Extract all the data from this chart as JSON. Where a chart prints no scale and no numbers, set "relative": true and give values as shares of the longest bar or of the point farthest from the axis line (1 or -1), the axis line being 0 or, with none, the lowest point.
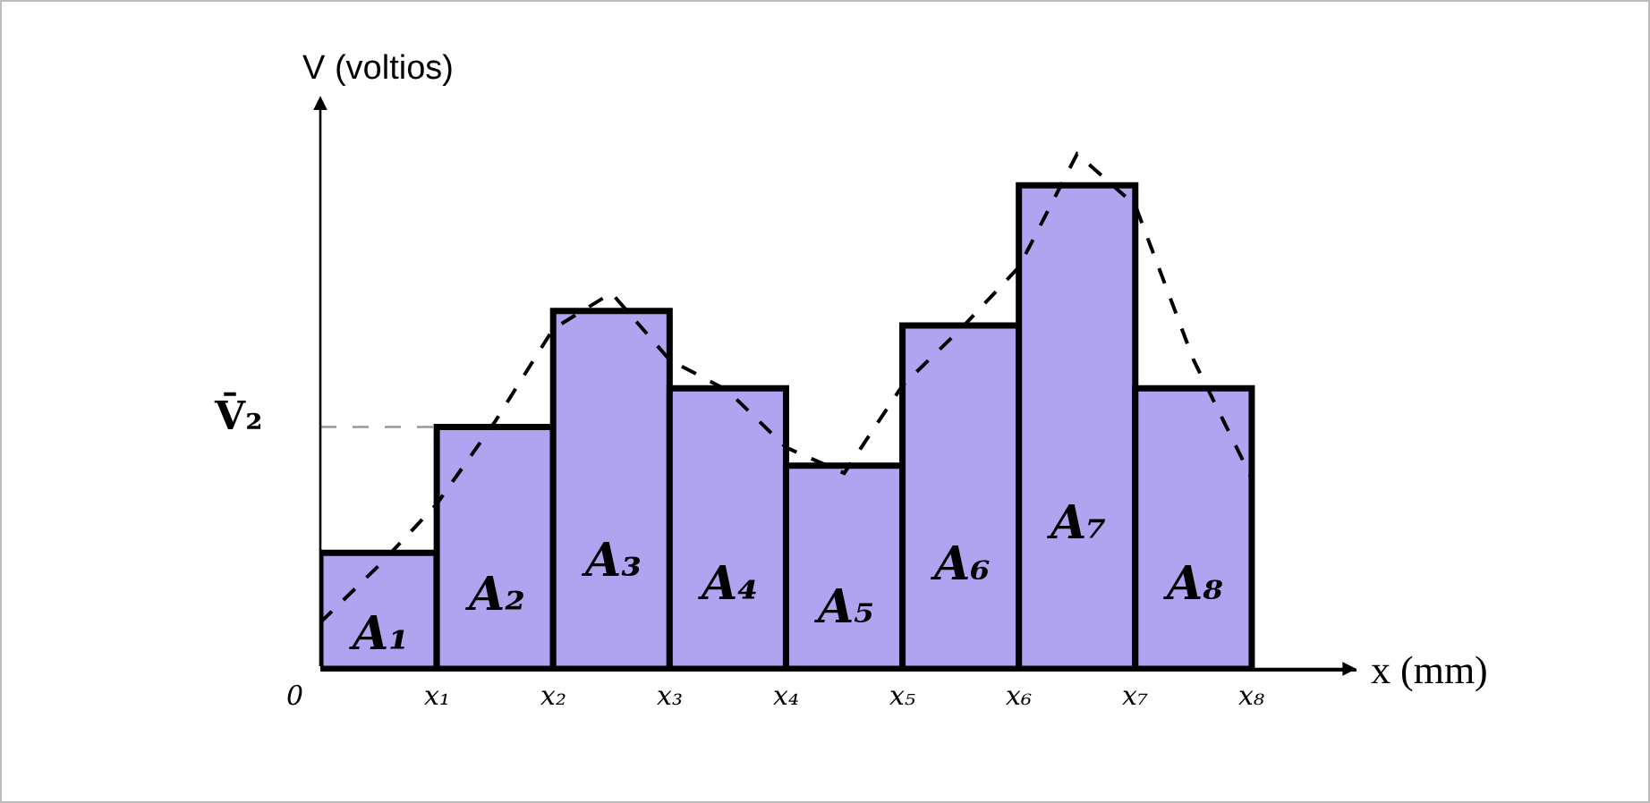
{
  "chart_data": [
    {
      "type": "bar",
      "relative": true,
      "xlabel": "x (mm)",
      "ylabel": "V (voltios)",
      "categories": [
        null,
        null,
        null,
        null,
        null,
        null,
        null,
        null
      ],
      "annotations": [
        "0",
        "x₁",
        "x₂",
        "x₃",
        "x₄",
        "x₅",
        "x₆",
        "x₇",
        "x₈",
        "A₁",
        "A₂",
        "A₃",
        "A₄",
        "A₅",
        "A₆",
        "A₇",
        "A₈"
      ],
      "series": [
        {
          "color": "#b0a4f0",
          "values": [
            0.24,
            0.5,
            0.74,
            0.58,
            0.42,
            0.71,
            1,
            0.58
          ]
        }
      ],
      "ref_lines": [
        {
          "axis": "y",
          "value": 0.5,
          "label": "V̄₂",
          "color": "#999999",
          "line_style": "dashed"
        }
      ]
    },
    {
      "type": "line",
      "relative": true,
      "line_style": "dashed",
      "categories": [
        null,
        null,
        null,
        null,
        null,
        null,
        null,
        null,
        null,
        null,
        null,
        null,
        null,
        null,
        null,
        null,
        null
      ],
      "series": [
        {
          "color": "#000000",
          "values": [
            0.09,
            0.2,
            0.32,
            0.48,
            0.66,
            0.73,
            0.6,
            0.54,
            0.43,
            0.38,
            0.55,
            0.66,
            0.78,
            1,
            0.9,
            0.6,
            0.37
          ]
        }
      ]
    }
  ]
}
